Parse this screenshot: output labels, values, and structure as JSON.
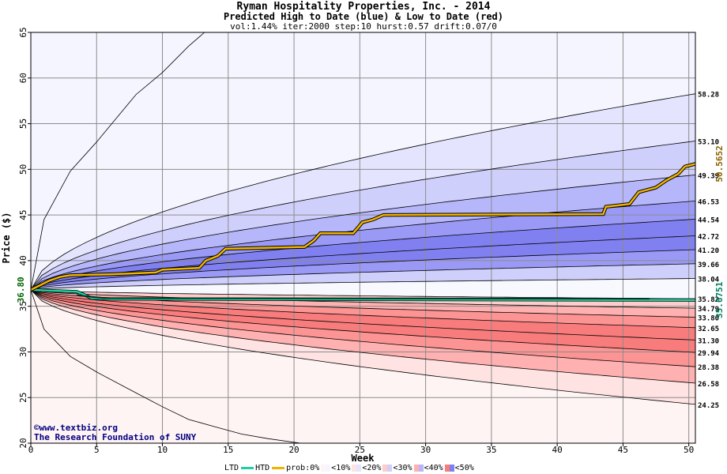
{
  "title": "Ryman Hospitality Properties, Inc.  - 2014",
  "subtitle": "Predicted High to Date (blue) &  Low to Date (red)",
  "params": "vol:1.44% iter:2000 step:10 hurst:0.57 drift:0.07/0",
  "credit_line1": "©www.textbiz.org",
  "credit_line2": "The Research Foundation of SUNY",
  "colors": {
    "background": "#ffffff",
    "grid": "#8c8c8c",
    "band_line": "#000000",
    "htd_line": "#f0b400",
    "ltd_line": "#20d0a0",
    "start_label": "#006400",
    "end_htd_label": "#8b6400",
    "end_ltd_label": "#008060",
    "blue_bands": [
      "#f5f5ff",
      "#e4e4fe",
      "#cfcffc",
      "#b6b6fa",
      "#9a9af6",
      "#8080f0"
    ],
    "red_bands": [
      "#fff4f4",
      "#ffe2e2",
      "#ffcccc",
      "#ffb0b0",
      "#fd9494",
      "#f87c7c"
    ]
  },
  "legend": {
    "ltd": "LTD",
    "htd": "HTD",
    "prob": "prob:0%",
    "p10": "<10%",
    "p20": "<20%",
    "p30": "<30%",
    "p40": "<40%",
    "p50": "<50%"
  },
  "chart_data": {
    "type": "area",
    "title": "Ryman Hospitality Properties, Inc.  - 2014",
    "xlabel": "Week",
    "ylabel": "Price ($)",
    "xlim": [
      0,
      50.5
    ],
    "ylim": [
      20,
      65
    ],
    "xticks": [
      0,
      5,
      10,
      15,
      20,
      25,
      30,
      35,
      40,
      45,
      50
    ],
    "yticks": [
      20,
      25,
      30,
      35,
      40,
      45,
      50,
      55,
      60,
      65
    ],
    "grid": true,
    "start_value": "36.80",
    "start_price": 36.8,
    "upper_quantile_end_labels": [
      "58.28",
      "53.10",
      "49.39",
      "46.53",
      "44.54",
      "42.72",
      "41.20",
      "39.66",
      "38.04"
    ],
    "upper_quantile_end_values": [
      58.28,
      53.1,
      49.39,
      46.53,
      44.54,
      42.72,
      41.2,
      39.66,
      38.04
    ],
    "lower_quantile_end_labels": [
      "35.82",
      "34.79",
      "33.80",
      "32.65",
      "31.30",
      "29.94",
      "28.38",
      "26.58",
      "24.25"
    ],
    "lower_quantile_end_values": [
      35.82,
      34.79,
      33.8,
      32.65,
      31.3,
      29.94,
      28.38,
      26.58,
      24.25
    ],
    "outer_envelope": {
      "upper": [
        [
          0,
          36.8
        ],
        [
          1,
          44.5
        ],
        [
          3,
          49.8
        ],
        [
          5,
          53.0
        ],
        [
          8,
          58.2
        ],
        [
          10,
          60.6
        ],
        [
          12,
          63.5
        ],
        [
          13.2,
          65
        ]
      ],
      "lower": [
        [
          0,
          36.8
        ],
        [
          1,
          32.5
        ],
        [
          3,
          29.5
        ],
        [
          5,
          27.8
        ],
        [
          8,
          25.5
        ],
        [
          10,
          24.0
        ],
        [
          12,
          22.6
        ],
        [
          14,
          21.8
        ],
        [
          16,
          21.0
        ],
        [
          18,
          20.5
        ],
        [
          20.5,
          20.0
        ]
      ]
    },
    "series": [
      {
        "name": "HTD",
        "points": [
          [
            0,
            36.8
          ],
          [
            0.7,
            37.3
          ],
          [
            1.4,
            37.8
          ],
          [
            2.2,
            38.2
          ],
          [
            3.0,
            38.4
          ],
          [
            6.0,
            38.5
          ],
          [
            9.5,
            38.7
          ],
          [
            10.0,
            39.0
          ],
          [
            12.8,
            39.2
          ],
          [
            13.3,
            40.0
          ],
          [
            14.2,
            40.5
          ],
          [
            14.8,
            41.3
          ],
          [
            20.8,
            41.5
          ],
          [
            21.5,
            42.2
          ],
          [
            22.0,
            43.0
          ],
          [
            24.5,
            43.0
          ],
          [
            25.2,
            44.2
          ],
          [
            26.0,
            44.5
          ],
          [
            26.8,
            45.0
          ],
          [
            43.5,
            45.1
          ],
          [
            43.7,
            45.9
          ],
          [
            45.5,
            46.2
          ],
          [
            46.2,
            47.5
          ],
          [
            47.5,
            48.0
          ],
          [
            48.3,
            48.8
          ],
          [
            49.2,
            49.5
          ],
          [
            49.7,
            50.3
          ],
          [
            50.5,
            50.6
          ]
        ],
        "end_label": "50.5652"
      },
      {
        "name": "LTD",
        "points": [
          [
            0,
            36.8
          ],
          [
            3.5,
            36.6
          ],
          [
            4.0,
            36.3
          ],
          [
            4.6,
            35.9
          ],
          [
            6.0,
            35.8
          ],
          [
            50.5,
            35.68
          ]
        ],
        "end_label": "35.6751"
      }
    ],
    "median_line": [
      [
        3.5,
        36.2
      ],
      [
        5.5,
        35.9
      ],
      [
        47.0,
        35.83
      ]
    ]
  }
}
